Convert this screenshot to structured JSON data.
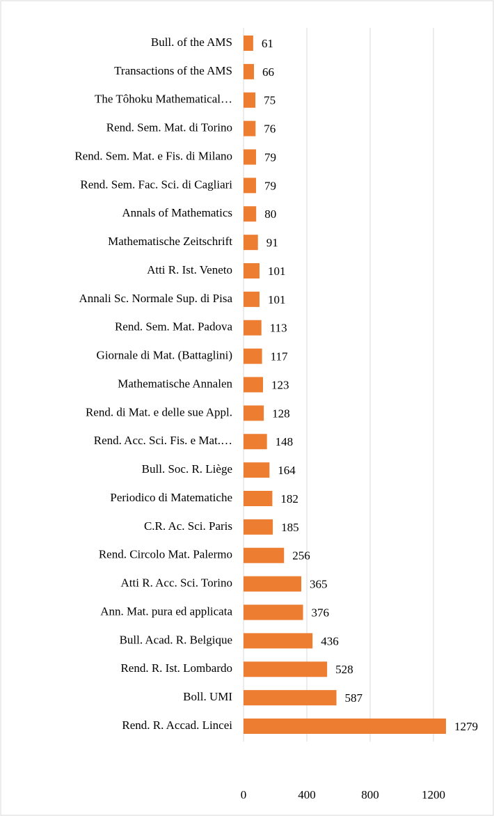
{
  "chart_data": {
    "type": "bar",
    "orientation": "horizontal",
    "categories": [
      "Bull. of the AMS",
      "Transactions of the AMS",
      "The Tôhoku Mathematical…",
      "Rend. Sem. Mat. di Torino",
      "Rend. Sem. Mat. e Fis. di Milano",
      "Rend. Sem. Fac. Sci. di Cagliari",
      "Annals of Mathematics",
      "Mathematische Zeitschrift",
      "Atti R. Ist. Veneto",
      "Annali Sc. Normale Sup. di Pisa",
      "Rend. Sem. Mat. Padova",
      "Giornale di Mat. (Battaglini)",
      "Mathematische Annalen",
      "Rend. di Mat. e delle sue Appl.",
      "Rend. Acc. Sci. Fis. e Mat.…",
      "Bull. Soc. R. Liège",
      "Periodico di Matematiche",
      "C.R. Ac. Sci. Paris",
      "Rend. Circolo Mat. Palermo",
      "Atti R. Acc. Sci. Torino",
      "Ann. Mat. pura ed applicata",
      "Bull. Acad. R. Belgique",
      "Rend. R. Ist. Lombardo",
      "Boll. UMI",
      "Rend. R. Accad. Lincei"
    ],
    "values": [
      61,
      66,
      75,
      76,
      79,
      79,
      80,
      91,
      101,
      101,
      113,
      117,
      123,
      128,
      148,
      164,
      182,
      185,
      256,
      365,
      376,
      436,
      528,
      587,
      1279
    ],
    "color": "#ed7d31",
    "xlim": [
      0,
      1400
    ],
    "xticks": [
      0,
      400,
      800,
      1200
    ],
    "grid": true
  }
}
